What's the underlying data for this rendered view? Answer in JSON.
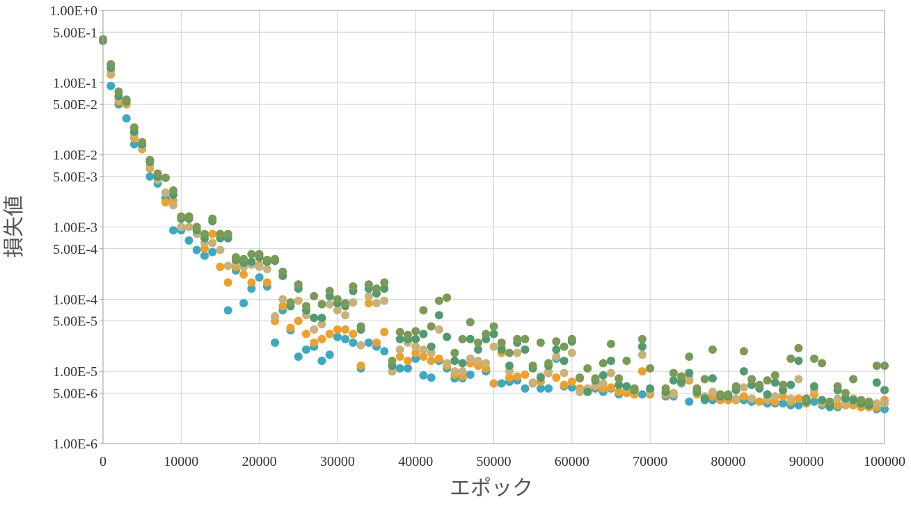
{
  "chart_data": {
    "type": "scatter",
    "xlabel": "エポック",
    "ylabel": "損失値",
    "xscale": "linear",
    "yscale": "log",
    "xlim": [
      0,
      100000
    ],
    "ylim": [
      1e-06,
      1
    ],
    "grid": true,
    "legend": "none",
    "x_ticks": [
      "0",
      "10000",
      "20000",
      "30000",
      "40000",
      "50000",
      "60000",
      "70000",
      "80000",
      "90000",
      "100000"
    ],
    "y_ticks": [
      {
        "label": "1.00E+0",
        "value": 1
      },
      {
        "label": "5.00E-1",
        "value": 0.5
      },
      {
        "label": "1.00E-1",
        "value": 0.1
      },
      {
        "label": "5.00E-2",
        "value": 0.05
      },
      {
        "label": "1.00E-2",
        "value": 0.01
      },
      {
        "label": "5.00E-3",
        "value": 0.005
      },
      {
        "label": "1.00E-3",
        "value": 0.001
      },
      {
        "label": "5.00E-4",
        "value": 0.0005
      },
      {
        "label": "1.00E-4",
        "value": 0.0001
      },
      {
        "label": "5.00E-5",
        "value": 5e-05
      },
      {
        "label": "1.00E-5",
        "value": 1e-05
      },
      {
        "label": "5.00E-6",
        "value": 5e-06
      },
      {
        "label": "1.00E-6",
        "value": 1e-06
      }
    ],
    "series": [
      {
        "color": "#3aa9c4",
        "x": [
          0,
          1000,
          2000,
          3000,
          4000,
          5000,
          6000,
          7000,
          8000,
          9000,
          10000,
          11000,
          12000,
          13000,
          14000,
          15000,
          16000,
          17000,
          18000,
          19000,
          20000,
          21000,
          22000,
          23000,
          24000,
          25000,
          26000,
          27000,
          28000,
          29000,
          30000,
          31000,
          32000,
          33000,
          34000,
          35000,
          36000,
          37000,
          38000,
          39000,
          40000,
          41000,
          42000,
          43000,
          44000,
          45000,
          46000,
          47000,
          48000,
          49000,
          50000,
          51000,
          52000,
          53000,
          54000,
          55000,
          56000,
          57000,
          58000,
          59000,
          60000,
          61000,
          62000,
          63000,
          64000,
          65000,
          66000,
          67000,
          68000,
          69000,
          70000,
          72000,
          73000,
          74000,
          75000,
          76000,
          77000,
          78000,
          79000,
          80000,
          81000,
          82000,
          83000,
          84000,
          85000,
          86000,
          87000,
          88000,
          89000,
          90000,
          91000,
          92000,
          93000,
          94000,
          95000,
          96000,
          97000,
          98000,
          99000,
          100000
        ],
        "y": [
          0.38,
          0.09,
          0.05,
          0.032,
          0.014,
          0.013,
          0.005,
          0.004,
          0.0025,
          0.0009,
          0.0009,
          0.00065,
          0.00048,
          0.0004,
          0.00045,
          0.00028,
          7e-05,
          0.00025,
          8.8e-05,
          0.00014,
          0.0002,
          0.00015,
          2.5e-05,
          7e-05,
          3.7e-05,
          1.6e-05,
          2e-05,
          2.2e-05,
          1.4e-05,
          1.7e-05,
          3e-05,
          2.8e-05,
          2.5e-05,
          1.1e-05,
          2.5e-05,
          2.2e-05,
          1.9e-05,
          1e-05,
          1.1e-05,
          1.1e-05,
          1.5e-05,
          8.8e-06,
          8.2e-06,
          1.4e-05,
          1.1e-05,
          8e-06,
          8e-06,
          9e-06,
          1.2e-05,
          1e-05,
          6.8e-06,
          6.8e-06,
          7.2e-06,
          7.5e-06,
          5.8e-06,
          6.8e-06,
          5.8e-06,
          5.8e-06,
          1.5e-05,
          6.2e-06,
          6e-06,
          5.2e-06,
          5.2e-06,
          5.8e-06,
          5.2e-06,
          5.8e-06,
          4.8e-06,
          5.2e-06,
          4.8e-06,
          4.8e-06,
          4.8e-06,
          4.5e-06,
          4.5e-06,
          6.8e-06,
          3.8e-06,
          4.8e-06,
          4e-06,
          4e-06,
          4e-06,
          4e-06,
          4e-06,
          4e-06,
          3.8e-06,
          3.8e-06,
          3.6e-06,
          3.6e-06,
          3.6e-06,
          3.4e-06,
          3.4e-06,
          3.6e-06,
          3.8e-06,
          3.4e-06,
          3.2e-06,
          3.2e-06,
          3.4e-06,
          3.4e-06,
          3.2e-06,
          3.2e-06,
          3e-06,
          3e-06
        ]
      },
      {
        "color": "#f0a028",
        "x": [
          0,
          1000,
          2000,
          3000,
          4000,
          5000,
          6000,
          7000,
          8000,
          9000,
          10000,
          11000,
          12000,
          13000,
          14000,
          15000,
          16000,
          17000,
          18000,
          19000,
          20000,
          21000,
          22000,
          23000,
          24000,
          25000,
          26000,
          27000,
          28000,
          29000,
          30000,
          31000,
          32000,
          33000,
          34000,
          35000,
          36000,
          37000,
          38000,
          39000,
          40000,
          41000,
          42000,
          43000,
          44000,
          45000,
          46000,
          47000,
          48000,
          49000,
          50000,
          51000,
          52000,
          53000,
          54000,
          55000,
          56000,
          57000,
          58000,
          59000,
          60000,
          61000,
          62000,
          63000,
          64000,
          65000,
          66000,
          67000,
          68000,
          69000,
          70000,
          72000,
          73000,
          74000,
          75000,
          76000,
          77000,
          78000,
          79000,
          80000,
          81000,
          82000,
          83000,
          84000,
          85000,
          86000,
          87000,
          88000,
          89000,
          90000,
          91000,
          92000,
          93000,
          94000,
          95000,
          96000,
          97000,
          98000,
          99000,
          100000
        ],
        "y": [
          0.38,
          0.13,
          0.055,
          0.05,
          0.017,
          0.012,
          0.0065,
          0.0045,
          0.0022,
          0.0023,
          0.001,
          0.001,
          0.0009,
          0.0005,
          0.0008,
          0.00028,
          0.00017,
          0.00028,
          0.00022,
          0.00017,
          0.0003,
          0.00017,
          5e-05,
          8e-05,
          4e-05,
          5e-05,
          3.3e-05,
          2.5e-05,
          2.8e-05,
          3.3e-05,
          3.8e-05,
          3.8e-05,
          3.3e-05,
          1.2e-05,
          8.8e-05,
          2.5e-05,
          3.5e-05,
          1e-05,
          1.6e-05,
          1.4e-05,
          1.8e-05,
          1.6e-05,
          1.4e-05,
          1.5e-05,
          1.2e-05,
          9e-06,
          8.5e-06,
          1.3e-05,
          1.2e-05,
          1.1e-05,
          6.8e-06,
          1.8e-05,
          8.2e-06,
          8.5e-06,
          9e-06,
          6.8e-06,
          7.2e-06,
          9.5e-06,
          8.2e-06,
          6.5e-06,
          7.2e-06,
          5.8e-06,
          5.2e-06,
          6.2e-06,
          5.8e-06,
          6e-06,
          5.2e-06,
          5e-06,
          4.8e-06,
          1e-05,
          4.8e-06,
          4.8e-06,
          5e-06,
          7e-06,
          7.5e-06,
          4.8e-06,
          4.2e-06,
          4.5e-06,
          4e-06,
          4e-06,
          4e-06,
          4.5e-06,
          4.2e-06,
          3.8e-06,
          4e-06,
          3.8e-06,
          4.5e-06,
          3.8e-06,
          4.2e-06,
          3.6e-06,
          4.8e-06,
          3.6e-06,
          3.4e-06,
          3.4e-06,
          3.4e-06,
          3.4e-06,
          3.2e-06,
          3.2e-06,
          3.2e-06,
          4e-06
        ]
      },
      {
        "color": "#c9b27a",
        "x": [
          0,
          1000,
          2000,
          3000,
          4000,
          5000,
          6000,
          7000,
          8000,
          9000,
          10000,
          11000,
          12000,
          13000,
          14000,
          15000,
          16000,
          17000,
          18000,
          19000,
          20000,
          21000,
          22000,
          23000,
          24000,
          25000,
          26000,
          27000,
          28000,
          29000,
          30000,
          31000,
          32000,
          33000,
          34000,
          35000,
          36000,
          37000,
          38000,
          39000,
          40000,
          41000,
          42000,
          43000,
          44000,
          45000,
          46000,
          47000,
          48000,
          49000,
          50000,
          51000,
          52000,
          53000,
          54000,
          55000,
          56000,
          57000,
          58000,
          59000,
          60000,
          61000,
          62000,
          63000,
          64000,
          65000,
          66000,
          67000,
          68000,
          69000,
          70000,
          72000,
          73000,
          74000,
          75000,
          76000,
          77000,
          78000,
          79000,
          80000,
          81000,
          82000,
          83000,
          84000,
          85000,
          86000,
          87000,
          88000,
          89000,
          90000,
          91000,
          92000,
          93000,
          94000,
          95000,
          96000,
          97000,
          98000,
          99000,
          100000
        ],
        "y": [
          0.38,
          0.14,
          0.06,
          0.055,
          0.019,
          0.013,
          0.007,
          0.0045,
          0.003,
          0.002,
          0.001,
          0.001,
          0.0008,
          0.0006,
          0.0006,
          0.00048,
          0.00029,
          0.00032,
          0.00028,
          0.0003,
          0.00028,
          0.00026,
          5.8e-05,
          0.0001,
          8.5e-05,
          9.5e-05,
          6e-05,
          3.8e-05,
          4.5e-05,
          8.5e-05,
          7e-05,
          6e-05,
          9e-05,
          2.3e-05,
          0.00011,
          8.8e-05,
          9.5e-05,
          1e-05,
          2e-05,
          2.5e-05,
          2.2e-05,
          2e-05,
          1.8e-05,
          3.8e-05,
          1.3e-05,
          1e-05,
          1e-05,
          1.5e-05,
          1.4e-05,
          1.3e-05,
          2.2e-05,
          2.2e-05,
          1e-05,
          1.8e-05,
          2e-05,
          7e-06,
          8.5e-06,
          1e-05,
          1.6e-05,
          9.5e-06,
          1.8e-05,
          5.2e-06,
          5.8e-06,
          6.5e-06,
          6.8e-06,
          9.5e-06,
          6.5e-06,
          5.8e-06,
          5.5e-06,
          1.7e-05,
          5.2e-06,
          5.2e-06,
          4.8e-06,
          8.5e-06,
          8.2e-06,
          5.5e-06,
          4.5e-06,
          5.2e-06,
          4.5e-06,
          4.5e-06,
          4.2e-06,
          6e-06,
          4.2e-06,
          6.2e-06,
          4.2e-06,
          4.5e-06,
          5.5e-06,
          4.2e-06,
          7.8e-06,
          3.8e-06,
          5.5e-06,
          3.8e-06,
          3.6e-06,
          4.2e-06,
          3.6e-06,
          4.2e-06,
          3.6e-06,
          3.4e-06,
          3.6e-06,
          3.6e-06
        ]
      },
      {
        "color": "#4f9b72",
        "x": [
          0,
          1000,
          2000,
          3000,
          4000,
          5000,
          6000,
          7000,
          8000,
          9000,
          10000,
          11000,
          12000,
          13000,
          14000,
          15000,
          16000,
          17000,
          18000,
          19000,
          20000,
          21000,
          22000,
          23000,
          24000,
          25000,
          26000,
          27000,
          28000,
          29000,
          30000,
          31000,
          32000,
          33000,
          34000,
          35000,
          36000,
          37000,
          38000,
          39000,
          40000,
          41000,
          42000,
          43000,
          44000,
          45000,
          46000,
          47000,
          48000,
          49000,
          50000,
          51000,
          52000,
          53000,
          54000,
          55000,
          56000,
          57000,
          58000,
          59000,
          60000,
          61000,
          62000,
          63000,
          64000,
          65000,
          66000,
          67000,
          68000,
          69000,
          70000,
          72000,
          73000,
          74000,
          75000,
          76000,
          77000,
          78000,
          79000,
          80000,
          81000,
          82000,
          83000,
          84000,
          85000,
          86000,
          87000,
          88000,
          89000,
          90000,
          91000,
          92000,
          93000,
          94000,
          95000,
          96000,
          97000,
          98000,
          99000,
          100000
        ],
        "y": [
          0.38,
          0.16,
          0.065,
          0.055,
          0.021,
          0.014,
          0.008,
          0.005,
          0.0048,
          0.0028,
          0.0013,
          0.0013,
          0.0009,
          0.0007,
          0.0012,
          0.0007,
          0.0007,
          0.00035,
          0.00032,
          0.00033,
          0.00038,
          0.00033,
          0.00034,
          0.00021,
          8e-05,
          0.00014,
          7e-05,
          5.5e-05,
          5.5e-05,
          0.00011,
          8.8e-05,
          8e-05,
          0.00013,
          3.8e-05,
          0.00014,
          0.00012,
          0.00014,
          1.2e-05,
          2.8e-05,
          2.8e-05,
          2.8e-05,
          3.3e-05,
          2.2e-05,
          6e-05,
          3e-05,
          1.4e-05,
          1.3e-05,
          2.8e-05,
          2e-05,
          2.8e-05,
          3.3e-05,
          2e-05,
          1.2e-05,
          2.5e-05,
          2e-05,
          1.1e-05,
          8.2e-06,
          1.2e-05,
          2e-05,
          1.4e-05,
          2.6e-05,
          8.2e-06,
          5.2e-06,
          7.5e-06,
          8.8e-06,
          1.4e-05,
          6.5e-06,
          6.2e-06,
          5.5e-06,
          2.2e-05,
          5.8e-06,
          5.2e-06,
          7.5e-06,
          7.2e-06,
          9.5e-06,
          5.2e-06,
          4.2e-06,
          8e-06,
          4.5e-06,
          4.5e-06,
          5.5e-06,
          1e-05,
          6.5e-06,
          5.8e-06,
          4.8e-06,
          7e-06,
          5.5e-06,
          6.5e-06,
          1.4e-05,
          3.8e-06,
          6.2e-06,
          4e-06,
          3.4e-06,
          5.5e-06,
          4.2e-06,
          4e-06,
          3.6e-06,
          3.4e-06,
          7e-06,
          5.5e-06
        ]
      },
      {
        "color": "#7a9a55",
        "x": [
          0,
          1000,
          2000,
          3000,
          4000,
          5000,
          6000,
          7000,
          8000,
          9000,
          10000,
          11000,
          12000,
          13000,
          14000,
          15000,
          16000,
          17000,
          18000,
          19000,
          20000,
          21000,
          22000,
          23000,
          24000,
          25000,
          26000,
          27000,
          28000,
          29000,
          30000,
          31000,
          32000,
          33000,
          34000,
          35000,
          36000,
          37000,
          38000,
          39000,
          40000,
          41000,
          42000,
          43000,
          44000,
          45000,
          46000,
          47000,
          48000,
          49000,
          50000,
          51000,
          52000,
          53000,
          54000,
          55000,
          56000,
          57000,
          58000,
          59000,
          60000,
          61000,
          62000,
          63000,
          64000,
          65000,
          66000,
          67000,
          68000,
          69000,
          70000,
          72000,
          73000,
          74000,
          75000,
          76000,
          77000,
          78000,
          79000,
          80000,
          81000,
          82000,
          83000,
          84000,
          85000,
          86000,
          87000,
          88000,
          89000,
          90000,
          91000,
          92000,
          93000,
          94000,
          95000,
          96000,
          97000,
          98000,
          99000,
          100000
        ],
        "y": [
          0.4,
          0.18,
          0.075,
          0.058,
          0.024,
          0.015,
          0.0085,
          0.0055,
          0.0048,
          0.0032,
          0.0014,
          0.0014,
          0.001,
          0.0008,
          0.0013,
          0.0008,
          0.0008,
          0.00038,
          0.00036,
          0.00042,
          0.00042,
          0.00035,
          0.00036,
          0.00024,
          9e-05,
          0.00016,
          8e-05,
          0.00011,
          8.5e-05,
          0.00013,
          0.0001,
          8.8e-05,
          0.00015,
          4.2e-05,
          0.00016,
          0.00014,
          0.00017,
          1.4e-05,
          3.5e-05,
          3.2e-05,
          3.6e-05,
          7e-05,
          4.2e-05,
          9.5e-05,
          0.000105,
          1.8e-05,
          2.8e-05,
          4.8e-05,
          2.5e-05,
          3.3e-05,
          4.2e-05,
          2.5e-05,
          1.8e-05,
          2.8e-05,
          2.8e-05,
          1.2e-05,
          2.5e-05,
          1.3e-05,
          2.6e-05,
          2.2e-05,
          2.8e-05,
          8e-06,
          1.1e-05,
          8e-06,
          1.3e-05,
          2.4e-05,
          8e-06,
          1.4e-05,
          5.8e-06,
          2.8e-05,
          1.1e-05,
          5.8e-06,
          9.5e-06,
          8.5e-06,
          1.6e-05,
          5.8e-06,
          7.8e-06,
          2e-05,
          4.8e-06,
          4.8e-06,
          6.2e-06,
          1.9e-05,
          7.8e-06,
          6.5e-06,
          7.5e-06,
          8.8e-06,
          6.5e-06,
          1.5e-05,
          2.1e-05,
          4.2e-06,
          1.5e-05,
          1.3e-05,
          3.8e-06,
          6.2e-06,
          5e-06,
          7.8e-06,
          4e-06,
          3.8e-06,
          1.2e-05,
          1.2e-05
        ]
      }
    ]
  }
}
